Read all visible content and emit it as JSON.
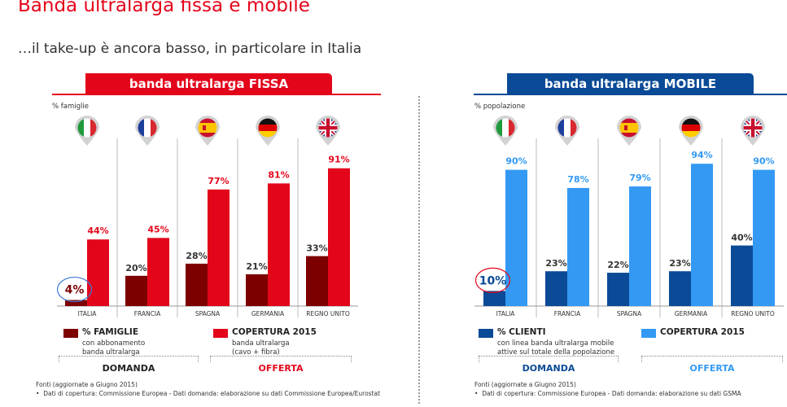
{
  "page": {
    "title": "Banda ultralarga fissa e mobile",
    "subtitle": "…il take-up è ancora basso, in particolare in Italia"
  },
  "panels": [
    {
      "header": "banda ultralarga FISSA",
      "unit": "% famiglie",
      "legend": [
        {
          "title": "% FAMIGLIE",
          "sub": [
            "con abbonamento",
            "banda ultralarga"
          ]
        },
        {
          "title": "COPERTURA 2015",
          "sub": [
            "banda ultralarga",
            "(cavo + fibra)"
          ]
        }
      ],
      "group_labels": [
        "DOMANDA",
        "OFFERTA"
      ],
      "sources": [
        "Fonti (aggiornate a Giugno 2015)",
        "Dati di copertura: Commissione Europea - Dati domanda: elaborazione su dati Commissione Europea/Eurostat"
      ]
    },
    {
      "header": "banda ultralarga MOBILE",
      "unit": "% popolazione",
      "legend": [
        {
          "title": "% CLIENTI",
          "sub": [
            "con linea banda ultralarga mobile",
            "attive sul totale della popolazione"
          ]
        },
        {
          "title": "COPERTURA 2015",
          "sub": []
        }
      ],
      "group_labels": [
        "DOMANDA",
        "OFFERTA"
      ],
      "sources": [
        "Fonti (aggiornate a Giugno 2015)",
        "Dati di copertura: Commissione Europea - Dati domanda: elaborazione su dati GSMA"
      ]
    }
  ],
  "colors": {
    "red_header": "#e3061b",
    "blue_header": "#0a4a96",
    "fixed_demand": "#7d0000",
    "fixed_supply": "#e3061b",
    "mobile_demand": "#0a4a96",
    "mobile_supply": "#3399f3",
    "circle": "#e3061b"
  },
  "icons": [
    "flag-italy-icon",
    "flag-france-icon",
    "flag-spain-icon",
    "flag-germany-icon",
    "flag-uk-icon"
  ],
  "chart_data": [
    {
      "type": "bar",
      "title": "banda ultralarga FISSA",
      "ylabel": "% famiglie",
      "categories": [
        "ITALIA",
        "FRANCIA",
        "SPAGNA",
        "GERMANIA",
        "REGNO UNITO"
      ],
      "series": [
        {
          "name": "% FAMIGLIE",
          "values": [
            4,
            20,
            28,
            21,
            33
          ]
        },
        {
          "name": "COPERTURA 2015",
          "values": [
            44,
            45,
            77,
            81,
            91
          ]
        }
      ],
      "ylim": [
        0,
        100
      ],
      "grid": false,
      "legend_position": "bottom"
    },
    {
      "type": "bar",
      "title": "banda ultralarga MOBILE",
      "ylabel": "% popolazione",
      "categories": [
        "ITALIA",
        "FRANCIA",
        "SPAGNA",
        "GERMANIA",
        "REGNO UNITO"
      ],
      "series": [
        {
          "name": "% CLIENTI",
          "values": [
            10,
            23,
            22,
            23,
            40
          ]
        },
        {
          "name": "COPERTURA 2015",
          "values": [
            90,
            78,
            79,
            94,
            90
          ]
        }
      ],
      "ylim": [
        0,
        100
      ],
      "grid": false,
      "legend_position": "bottom"
    }
  ]
}
